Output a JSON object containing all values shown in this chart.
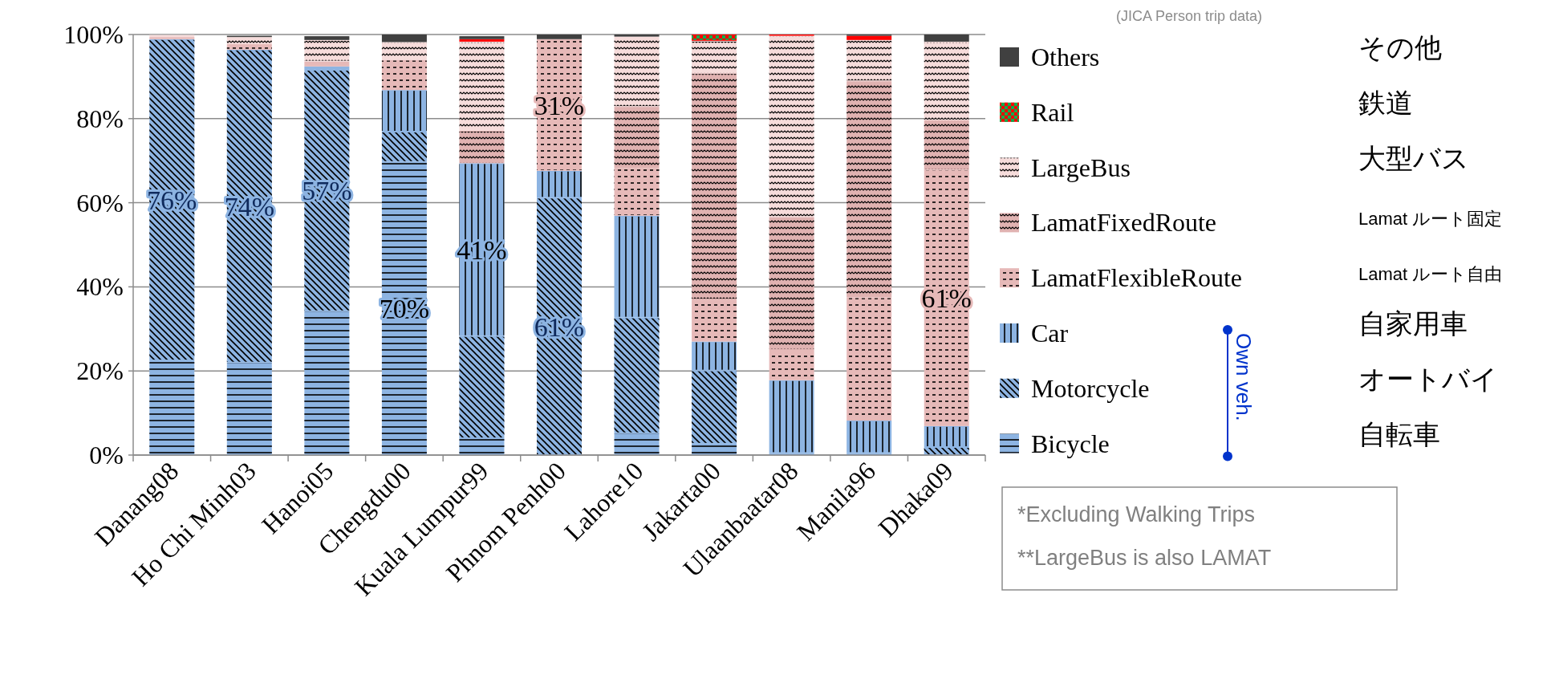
{
  "chart_data": {
    "type": "bar",
    "stacked": true,
    "categories": [
      "Danang08",
      "Ho Chi Minh03",
      "Hanoi05",
      "Chengdu00",
      "Kuala Lumpur99",
      "Phnom Penh00",
      "Lahore10",
      "Jakarta00",
      "Ulaanbaatar08",
      "Manila96",
      "Dhaka09"
    ],
    "series": [
      {
        "name": "Bicycle",
        "color": "#8db4e2",
        "values": [
          22.5,
          22.0,
          34.2,
          69.7,
          4.0,
          0,
          5.2,
          2.7,
          0.5,
          0.5,
          0
        ],
        "value_labels": [
          null,
          null,
          null,
          "70%",
          null,
          null,
          null,
          null,
          null,
          null,
          null
        ]
      },
      {
        "name": "Motorcycle",
        "color": "#8db4e2",
        "values": [
          76.4,
          74.4,
          57.4,
          7.2,
          24.3,
          61.2,
          27.5,
          17.4,
          0,
          0,
          1.9
        ],
        "value_labels": [
          "76%",
          "74%",
          "57%",
          null,
          null,
          "61%",
          null,
          null,
          null,
          null,
          null
        ]
      },
      {
        "name": "Car",
        "color": "#8db4e2",
        "values": [
          0,
          0,
          0.8,
          9.9,
          41.1,
          6.4,
          24.2,
          6.9,
          17.3,
          7.7,
          5.0
        ],
        "value_labels": [
          null,
          null,
          null,
          null,
          "41%",
          null,
          null,
          null,
          null,
          null,
          null
        ]
      },
      {
        "name": "LamatFlexibleRoute",
        "color": "#e6b9b8",
        "values": [
          0.5,
          1.3,
          1.2,
          7.2,
          0,
          31.3,
          11.3,
          10.0,
          7.2,
          29.3,
          60.9
        ],
        "value_labels": [
          null,
          null,
          null,
          null,
          null,
          "31%",
          null,
          null,
          null,
          null,
          "61%"
        ]
      },
      {
        "name": "LamatFixedRoute",
        "color": "#e0b2b1",
        "values": [
          0,
          0,
          0,
          0,
          7.7,
          0,
          14.6,
          53.8,
          31.6,
          51.4,
          11.8
        ]
      },
      {
        "name": "LargeBus",
        "color": "#f6dcdb",
        "values": [
          0.5,
          1.7,
          5.1,
          4.2,
          21.2,
          0,
          16.7,
          7.7,
          43.1,
          9.8,
          18.7
        ]
      },
      {
        "name": "Rail",
        "color": "#ff0000",
        "values": [
          0,
          0,
          0,
          0,
          0.6,
          0,
          0,
          1.5,
          0.3,
          1.0,
          0
        ]
      },
      {
        "name": "Others",
        "color": "#404040",
        "values": [
          0,
          0.3,
          0.9,
          1.8,
          0.7,
          1.1,
          0.5,
          0,
          0,
          0.3,
          1.7
        ]
      }
    ],
    "ylim": [
      0,
      100
    ],
    "yticks": [
      {
        "value": 0,
        "label": "0%"
      },
      {
        "value": 20,
        "label": "20%"
      },
      {
        "value": 40,
        "label": "40%"
      },
      {
        "value": 60,
        "label": "60%"
      },
      {
        "value": 80,
        "label": "80%"
      },
      {
        "value": 100,
        "label": "100%"
      }
    ],
    "grid": "y",
    "legend": "right",
    "annotations": [
      "(JICA Person trip data)",
      "その他",
      "鉄道",
      "大型バス",
      "Lamat ルート固定",
      "Lamat ルート自由",
      "自家用車",
      "オートバイ",
      "自転車",
      "Own veh.",
      "*Excluding Walking Trips",
      "**LargeBus is also LAMAT"
    ]
  }
}
